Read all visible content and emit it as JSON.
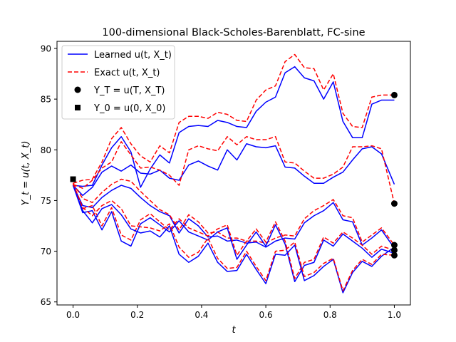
{
  "chart_data": {
    "type": "line",
    "title": "100-dimensional Black-Scholes-Barenblatt, FC-sine",
    "xlabel": "t",
    "ylabel": "Y_t = u(t, X_t)",
    "xlim": [
      -0.05,
      1.05
    ],
    "ylim": [
      64.7,
      90.7
    ],
    "xticks": [
      0.0,
      0.2,
      0.4,
      0.6,
      0.8,
      1.0
    ],
    "xtick_labels": [
      "0.0",
      "0.2",
      "0.4",
      "0.6",
      "0.8",
      "1.0"
    ],
    "yticks": [
      65,
      70,
      75,
      80,
      85,
      90
    ],
    "ytick_labels": [
      "65",
      "70",
      "75",
      "80",
      "85",
      "90"
    ],
    "grid": false,
    "legend_position": "top-left",
    "legend": [
      {
        "label": "Learned u(t, X_t)",
        "style": "solid-line",
        "color": "#0000ff"
      },
      {
        "label": "Exact u(t, X_t)",
        "style": "dashed-line",
        "color": "#ff0000"
      },
      {
        "label": "Y_T = u(T, X_T)",
        "style": "circle-marker",
        "color": "#000000"
      },
      {
        "label": "Y_0 = u(0, X_0)",
        "style": "square-marker",
        "color": "#000000"
      }
    ],
    "x": [
      0.0,
      0.03,
      0.06,
      0.09,
      0.12,
      0.15,
      0.18,
      0.21,
      0.24,
      0.27,
      0.3,
      0.33,
      0.36,
      0.39,
      0.42,
      0.45,
      0.48,
      0.51,
      0.54,
      0.57,
      0.6,
      0.63,
      0.66,
      0.69,
      0.72,
      0.75,
      0.78,
      0.81,
      0.84,
      0.87,
      0.9,
      0.93,
      0.96,
      1.0
    ],
    "series": [
      {
        "color": "#0000ff",
        "style": "solid",
        "values": [
          76.5,
          76.4,
          76.5,
          78.5,
          80.2,
          81.3,
          79.8,
          76.3,
          78.1,
          79.5,
          78.7,
          81.7,
          82.3,
          82.4,
          82.3,
          82.9,
          82.7,
          82.3,
          82.2,
          83.8,
          84.7,
          85.2,
          87.6,
          88.2,
          87.1,
          86.8,
          85.0,
          86.7,
          82.8,
          81.2,
          81.2,
          84.5,
          84.9,
          84.9
        ]
      },
      {
        "color": "#ff0000",
        "style": "dashed",
        "values": [
          76.7,
          77.0,
          77.1,
          78.8,
          81.1,
          82.2,
          80.6,
          79.4,
          78.8,
          80.4,
          79.7,
          82.7,
          83.3,
          83.3,
          83.1,
          83.7,
          83.5,
          82.9,
          82.8,
          84.9,
          85.9,
          86.3,
          88.7,
          89.4,
          88.1,
          88.0,
          85.9,
          87.5,
          83.6,
          82.3,
          82.2,
          85.2,
          85.4,
          85.4
        ]
      },
      {
        "color": "#0000ff",
        "style": "solid",
        "values": [
          76.5,
          75.5,
          76.3,
          77.8,
          78.4,
          77.9,
          78.5,
          77.7,
          77.6,
          78.0,
          77.2,
          77.0,
          78.5,
          78.9,
          78.4,
          78.0,
          80.0,
          79.0,
          80.6,
          80.3,
          80.2,
          80.4,
          78.3,
          78.2,
          77.4,
          76.7,
          76.7,
          77.3,
          77.8,
          79.0,
          80.1,
          80.3,
          79.6,
          76.6
        ]
      },
      {
        "color": "#ff0000",
        "style": "dashed",
        "values": [
          76.6,
          76.2,
          77.0,
          78.2,
          78.8,
          80.8,
          79.5,
          78.2,
          78.3,
          78.0,
          77.5,
          76.5,
          80.0,
          80.4,
          80.1,
          79.9,
          81.3,
          80.5,
          81.3,
          81.0,
          81.0,
          81.3,
          78.8,
          78.7,
          77.9,
          77.2,
          77.2,
          77.6,
          78.3,
          80.3,
          80.3,
          80.4,
          80.1,
          74.7
        ]
      },
      {
        "color": "#0000ff",
        "style": "solid",
        "values": [
          76.5,
          74.5,
          74.3,
          75.3,
          76.0,
          76.5,
          76.2,
          75.3,
          74.5,
          73.9,
          73.5,
          71.8,
          73.2,
          72.5,
          71.4,
          71.5,
          71.0,
          71.1,
          70.8,
          70.9,
          70.4,
          71.0,
          71.3,
          71.2,
          72.8,
          73.5,
          74.0,
          74.8,
          73.1,
          72.9,
          70.6,
          71.3,
          72.1,
          70.3
        ]
      },
      {
        "color": "#ff0000",
        "style": "dashed",
        "values": [
          76.7,
          75.2,
          74.8,
          75.8,
          76.6,
          77.1,
          76.9,
          75.9,
          75.0,
          74.1,
          73.6,
          72.1,
          73.6,
          72.9,
          71.8,
          71.9,
          71.3,
          71.3,
          71.0,
          71.0,
          70.8,
          71.3,
          71.6,
          71.5,
          73.2,
          74.0,
          74.5,
          75.1,
          73.5,
          73.3,
          70.9,
          71.6,
          72.3,
          70.6
        ]
      },
      {
        "color": "#0000ff",
        "style": "solid",
        "values": [
          76.5,
          73.8,
          74.0,
          72.1,
          73.9,
          71.0,
          70.5,
          72.7,
          73.3,
          72.6,
          71.9,
          73.0,
          71.9,
          71.5,
          71.1,
          71.9,
          72.3,
          69.2,
          70.6,
          71.9,
          70.5,
          72.6,
          70.7,
          67.0,
          68.6,
          68.9,
          71.1,
          70.5,
          71.7,
          71.0,
          70.3,
          69.4,
          70.2,
          69.8
        ]
      },
      {
        "color": "#ff0000",
        "style": "dashed",
        "values": [
          76.6,
          74.2,
          74.5,
          72.5,
          74.3,
          71.6,
          71.1,
          73.1,
          73.7,
          72.9,
          72.1,
          73.2,
          72.3,
          71.9,
          71.5,
          72.2,
          72.6,
          69.6,
          71.0,
          72.2,
          70.9,
          72.9,
          71.0,
          67.3,
          68.9,
          69.2,
          71.4,
          70.8,
          71.9,
          71.3,
          70.6,
          69.7,
          70.5,
          70.1
        ]
      },
      {
        "color": "#0000ff",
        "style": "solid",
        "values": [
          76.5,
          74.0,
          72.8,
          74.2,
          74.6,
          73.6,
          72.2,
          71.8,
          72.0,
          71.4,
          72.5,
          69.7,
          68.9,
          69.5,
          70.8,
          68.9,
          68.0,
          68.1,
          69.7,
          68.2,
          66.8,
          69.7,
          69.6,
          70.6,
          67.1,
          67.6,
          68.5,
          69.2,
          65.9,
          67.9,
          69.0,
          68.5,
          69.5,
          70.4
        ]
      },
      {
        "color": "#ff0000",
        "style": "dashed",
        "values": [
          76.7,
          74.3,
          73.5,
          74.5,
          75.0,
          74.2,
          72.5,
          72.4,
          72.3,
          72.0,
          72.7,
          70.4,
          69.4,
          69.9,
          71.3,
          69.3,
          68.3,
          68.4,
          70.0,
          68.5,
          67.1,
          70.0,
          70.1,
          70.9,
          67.5,
          67.9,
          68.8,
          69.3,
          66.1,
          68.1,
          69.2,
          68.7,
          69.7,
          69.6
        ]
      }
    ],
    "terminal_points": {
      "x": 1.0,
      "y": [
        85.4,
        74.7,
        70.6,
        70.1,
        69.6
      ]
    },
    "initial_point": {
      "x": 0.0,
      "y": 77.1
    }
  }
}
